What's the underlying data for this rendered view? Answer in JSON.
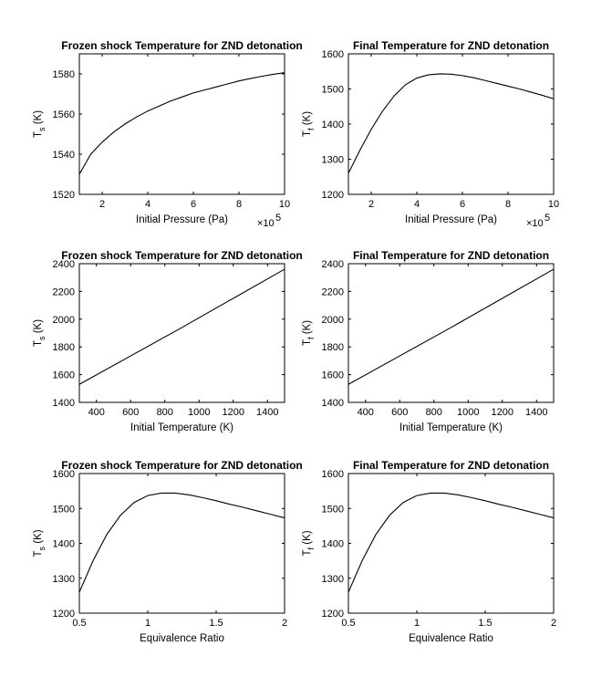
{
  "chart_data": [
    {
      "type": "line",
      "title": "Frozen shock Temperature for ZND detonation",
      "xlabel": "Initial Pressure (Pa)",
      "ylabel": "T",
      "ylabel_sub": "s",
      "ylabel_unit": "(K)",
      "x_multiplier": "×10",
      "x_multiplier_exp": "5",
      "xlim": [
        1,
        10
      ],
      "ylim": [
        1520,
        1590
      ],
      "xticks": [
        2,
        4,
        6,
        8,
        10
      ],
      "yticks": [
        1520,
        1540,
        1560,
        1580
      ],
      "grid": false,
      "series": [
        {
          "x": [
            1,
            1.5,
            2,
            2.5,
            3,
            3.5,
            4,
            4.5,
            5,
            5.5,
            6,
            6.5,
            7,
            7.5,
            8,
            8.5,
            9,
            9.5,
            10
          ],
          "y": [
            1530,
            1540,
            1546,
            1551,
            1555,
            1558.5,
            1561.5,
            1564,
            1566.5,
            1568.5,
            1570.5,
            1572,
            1573.5,
            1575,
            1576.5,
            1577.7,
            1578.8,
            1579.8,
            1580.6
          ]
        }
      ]
    },
    {
      "type": "line",
      "title": "Final Temperature for ZND detonation",
      "xlabel": "Initial Pressure (Pa)",
      "ylabel": "T",
      "ylabel_sub": "f",
      "ylabel_unit": "(K)",
      "x_multiplier": "×10",
      "x_multiplier_exp": "5",
      "xlim": [
        1,
        10
      ],
      "ylim": [
        1200,
        1600
      ],
      "xticks": [
        2,
        4,
        6,
        8,
        10
      ],
      "yticks": [
        1200,
        1300,
        1400,
        1500,
        1600
      ],
      "grid": false,
      "series": [
        {
          "x": [
            1,
            1.5,
            2,
            2.5,
            3,
            3.5,
            4,
            4.5,
            5,
            5.5,
            6,
            6.5,
            7,
            7.5,
            8,
            8.5,
            9,
            9.5,
            10
          ],
          "y": [
            1260,
            1325,
            1385,
            1437,
            1480,
            1512,
            1531,
            1540,
            1543,
            1542,
            1538,
            1532,
            1524,
            1516,
            1508,
            1500,
            1491,
            1482,
            1472
          ]
        }
      ]
    },
    {
      "type": "line",
      "title": "Frozen shock Temperature for ZND detonation",
      "xlabel": "Initial Temperature (K)",
      "ylabel": "T",
      "ylabel_sub": "s",
      "ylabel_unit": "(K)",
      "xlim": [
        300,
        1500
      ],
      "ylim": [
        1400,
        2400
      ],
      "xticks": [
        400,
        600,
        800,
        1000,
        1200,
        1400
      ],
      "yticks": [
        1400,
        1600,
        1800,
        2000,
        2200,
        2400
      ],
      "grid": false,
      "series": [
        {
          "x": [
            300,
            600,
            900,
            1200,
            1500
          ],
          "y": [
            1530,
            1735,
            1940,
            2150,
            2360
          ]
        }
      ]
    },
    {
      "type": "line",
      "title": "Final Temperature for ZND detonation",
      "xlabel": "Initial Temperature (K)",
      "ylabel": "T",
      "ylabel_sub": "f",
      "ylabel_unit": "(K)",
      "xlim": [
        300,
        1500
      ],
      "ylim": [
        1400,
        2400
      ],
      "xticks": [
        400,
        600,
        800,
        1000,
        1200,
        1400
      ],
      "yticks": [
        1400,
        1600,
        1800,
        2000,
        2200,
        2400
      ],
      "grid": false,
      "series": [
        {
          "x": [
            300,
            600,
            900,
            1200,
            1500
          ],
          "y": [
            1530,
            1735,
            1940,
            2150,
            2360
          ]
        }
      ]
    },
    {
      "type": "line",
      "title": "Frozen shock Temperature for ZND detonation",
      "xlabel": "Equivalence Ratio",
      "ylabel": "T",
      "ylabel_sub": "s",
      "ylabel_unit": "(K)",
      "xlim": [
        0.5,
        2
      ],
      "ylim": [
        1200,
        1600
      ],
      "xticks": [
        0.5,
        1,
        1.5,
        2
      ],
      "ytick_labels": [
        "1200",
        "1300",
        "1400",
        "1500",
        "1600"
      ],
      "xtick_labels": [
        "0.5",
        "1",
        "1.5",
        "2"
      ],
      "yticks": [
        1200,
        1300,
        1400,
        1500,
        1600
      ],
      "grid": false,
      "series": [
        {
          "x": [
            0.5,
            0.6,
            0.7,
            0.8,
            0.9,
            1.0,
            1.1,
            1.2,
            1.3,
            1.4,
            1.5,
            1.6,
            1.7,
            1.8,
            1.9,
            2.0
          ],
          "y": [
            1260,
            1350,
            1425,
            1480,
            1517,
            1537,
            1544,
            1544,
            1539,
            1531,
            1522,
            1512,
            1503,
            1493,
            1483,
            1473
          ]
        }
      ]
    },
    {
      "type": "line",
      "title": "Final Temperature for ZND detonation",
      "xlabel": "Equivalence Ratio",
      "ylabel": "T",
      "ylabel_sub": "f",
      "ylabel_unit": "(K)",
      "xlim": [
        0.5,
        2
      ],
      "ylim": [
        1200,
        1600
      ],
      "xticks": [
        0.5,
        1,
        1.5,
        2
      ],
      "ytick_labels": [
        "1200",
        "1300",
        "1400",
        "1500",
        "1600"
      ],
      "xtick_labels": [
        "0.5",
        "1",
        "1.5",
        "2"
      ],
      "yticks": [
        1200,
        1300,
        1400,
        1500,
        1600
      ],
      "grid": false,
      "series": [
        {
          "x": [
            0.5,
            0.6,
            0.7,
            0.8,
            0.9,
            1.0,
            1.1,
            1.2,
            1.3,
            1.4,
            1.5,
            1.6,
            1.7,
            1.8,
            1.9,
            2.0
          ],
          "y": [
            1260,
            1350,
            1425,
            1480,
            1517,
            1537,
            1544,
            1544,
            1539,
            1531,
            1522,
            1512,
            1503,
            1493,
            1483,
            1473
          ]
        }
      ]
    }
  ]
}
